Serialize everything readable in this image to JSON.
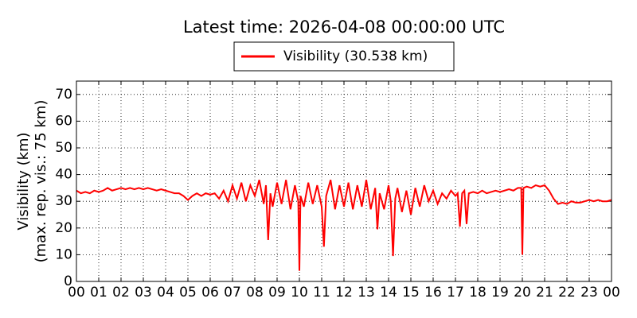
{
  "chart_data": {
    "type": "line",
    "title": "Latest time: 2026-04-08 00:00:00 UTC",
    "y_label": [
      "Visibility (km)",
      "(max. rep. vis.: 75 km)"
    ],
    "series": [
      {
        "name": "Visibility (30.538 km)",
        "color": "#ff0000",
        "x": [
          0,
          0.2,
          0.4,
          0.6,
          0.8,
          1,
          1.2,
          1.4,
          1.6,
          1.8,
          2,
          2.2,
          2.4,
          2.6,
          2.8,
          3,
          3.2,
          3.4,
          3.6,
          3.8,
          4,
          4.2,
          4.4,
          4.6,
          4.8,
          5,
          5.2,
          5.4,
          5.6,
          5.8,
          6,
          6.2,
          6.4,
          6.6,
          6.8,
          7,
          7.2,
          7.4,
          7.6,
          7.8,
          8,
          8.2,
          8.4,
          8.5,
          8.6,
          8.7,
          8.8,
          9,
          9.2,
          9.4,
          9.6,
          9.8,
          9.95,
          10,
          10.05,
          10.2,
          10.4,
          10.6,
          10.8,
          11,
          11.1,
          11.2,
          11.4,
          11.6,
          11.8,
          12,
          12.2,
          12.4,
          12.6,
          12.8,
          13,
          13.2,
          13.4,
          13.5,
          13.6,
          13.8,
          14,
          14.1,
          14.2,
          14.3,
          14.4,
          14.6,
          14.8,
          15,
          15.2,
          15.4,
          15.6,
          15.8,
          16,
          16.2,
          16.4,
          16.6,
          16.8,
          17,
          17.1,
          17.2,
          17.3,
          17.4,
          17.5,
          17.6,
          17.8,
          18,
          18.2,
          18.4,
          18.6,
          18.8,
          19,
          19.2,
          19.4,
          19.6,
          19.8,
          19.95,
          20,
          20.05,
          20.2,
          20.4,
          20.6,
          20.8,
          21,
          21.2,
          21.4,
          21.6,
          21.8,
          22,
          22.2,
          22.4,
          22.6,
          22.8,
          23,
          23.2,
          23.4,
          23.6,
          23.8,
          24
        ],
        "values": [
          34,
          33,
          33.5,
          33,
          34,
          33.5,
          34,
          35,
          34,
          34.5,
          35,
          34.5,
          35,
          34.5,
          35,
          34.5,
          35,
          34.5,
          34,
          34.5,
          34,
          33.5,
          33,
          33,
          32,
          30.5,
          32,
          33,
          32,
          33,
          32.5,
          33,
          31,
          34,
          30,
          36,
          31,
          37,
          30,
          36,
          32,
          38,
          29,
          36,
          15.5,
          33,
          28,
          37,
          29,
          38,
          27,
          36,
          30,
          4,
          32,
          28,
          37,
          29,
          36,
          28,
          13,
          32,
          38,
          27,
          36,
          28,
          37,
          27,
          36,
          28,
          38,
          27,
          35,
          19.5,
          33,
          27,
          36,
          30,
          9.5,
          31,
          35,
          26,
          34,
          25,
          35,
          28,
          36,
          30,
          34,
          29,
          33,
          31,
          34,
          32,
          33,
          20.5,
          33,
          34,
          21.5,
          33,
          33.5,
          33,
          34,
          33,
          33.5,
          34,
          33.5,
          34,
          34.5,
          34,
          35,
          35,
          10,
          35,
          35.5,
          35,
          36,
          35.5,
          36,
          34,
          31,
          29,
          29.5,
          29,
          30,
          29.5,
          29.5,
          30,
          30.5,
          30,
          30.5,
          30,
          30,
          30.5
        ]
      }
    ],
    "xlim": [
      0,
      24
    ],
    "xticks": [
      {
        "value": 0,
        "label": "00"
      },
      {
        "value": 1,
        "label": "01"
      },
      {
        "value": 2,
        "label": "02"
      },
      {
        "value": 3,
        "label": "03"
      },
      {
        "value": 4,
        "label": "04"
      },
      {
        "value": 5,
        "label": "05"
      },
      {
        "value": 6,
        "label": "06"
      },
      {
        "value": 7,
        "label": "07"
      },
      {
        "value": 8,
        "label": "08"
      },
      {
        "value": 9,
        "label": "09"
      },
      {
        "value": 10,
        "label": "10"
      },
      {
        "value": 11,
        "label": "11"
      },
      {
        "value": 12,
        "label": "12"
      },
      {
        "value": 13,
        "label": "13"
      },
      {
        "value": 14,
        "label": "14"
      },
      {
        "value": 15,
        "label": "15"
      },
      {
        "value": 16,
        "label": "16"
      },
      {
        "value": 17,
        "label": "17"
      },
      {
        "value": 18,
        "label": "18"
      },
      {
        "value": 19,
        "label": "19"
      },
      {
        "value": 20,
        "label": "20"
      },
      {
        "value": 21,
        "label": "21"
      },
      {
        "value": 22,
        "label": "22"
      },
      {
        "value": 23,
        "label": "23"
      },
      {
        "value": 24,
        "label": "00"
      }
    ],
    "ylim": [
      0,
      75
    ],
    "yticks": [
      0,
      10,
      20,
      30,
      40,
      50,
      60,
      70
    ],
    "grid": true
  }
}
